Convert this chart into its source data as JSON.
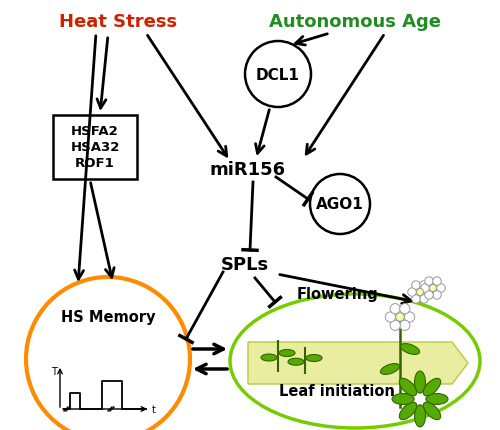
{
  "bg_color": "#ffffff",
  "heat_stress_label": "Heat Stress",
  "heat_stress_color": "#cc2200",
  "autonomous_age_label": "Autonomous Age",
  "autonomous_age_color": "#228b22",
  "dcl1_label": "DCL1",
  "ago1_label": "AGO1",
  "mir156_label": "miR156",
  "spls_label": "SPLs",
  "hs_memory_label": "HS Memory",
  "flowering_label": "Flowering",
  "leaf_initiation_label": "Leaf initiation",
  "hsfa2_box_labels": [
    "HSFA2",
    "HSA32",
    "ROF1"
  ],
  "arrow_color": "#000000",
  "orange_color": "#ff8c00",
  "green_ellipse_color": "#77cc00",
  "light_yellow_green": "#e8f0a0",
  "plant_green": "#55aa00",
  "dark_plant_green": "#336600"
}
